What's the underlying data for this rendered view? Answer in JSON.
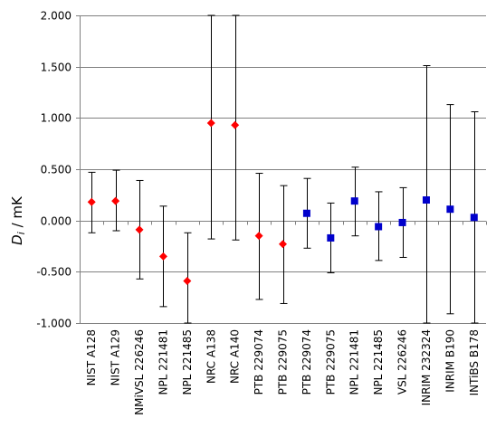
{
  "chart_data": {
    "type": "scatter",
    "title": "",
    "ylabel_main": "D",
    "ylabel_sub": "i",
    "ylabel_unit": " / mK",
    "xlabel": "",
    "ylim": [
      -1.0,
      2.0
    ],
    "yticks": [
      2.0,
      1.5,
      1.0,
      0.5,
      0.0,
      -0.5,
      -1.0
    ],
    "ytick_labels": [
      "2.000",
      "1.500",
      "1.000",
      "0.500",
      "0.000",
      "-0.500",
      "-1.000"
    ],
    "grid": true,
    "categories": [
      "NIST A128",
      "NIST A129",
      "NMiVSL 226246",
      "NPL 221481",
      "NPL 221485",
      "NRC A138",
      "NRC A140",
      "PTB 229074",
      "PTB 229075",
      "PTB 229074",
      "PTB 229075",
      "NPL 221481",
      "NPL 221485",
      "VSL 226246",
      "INRIM 232324",
      "INRIM B190",
      "INTiBS B178"
    ],
    "series": [
      {
        "marker": "diamond",
        "color": "#ff0000",
        "points": [
          {
            "cat": 0,
            "y": 0.18,
            "lo": -0.12,
            "hi": 0.47
          },
          {
            "cat": 1,
            "y": 0.19,
            "lo": -0.1,
            "hi": 0.49
          },
          {
            "cat": 2,
            "y": -0.09,
            "lo": -0.57,
            "hi": 0.39
          },
          {
            "cat": 3,
            "y": -0.35,
            "lo": -0.84,
            "hi": 0.14
          },
          {
            "cat": 4,
            "y": -0.59,
            "lo": -1.0,
            "hi": -0.12
          },
          {
            "cat": 5,
            "y": 0.95,
            "lo": -0.18,
            "hi": 2.0
          },
          {
            "cat": 6,
            "y": 0.93,
            "lo": -0.19,
            "hi": 2.0
          },
          {
            "cat": 7,
            "y": -0.15,
            "lo": -0.77,
            "hi": 0.46
          },
          {
            "cat": 8,
            "y": -0.23,
            "lo": -0.81,
            "hi": 0.34
          }
        ]
      },
      {
        "marker": "square",
        "color": "#0000cc",
        "points": [
          {
            "cat": 9,
            "y": 0.07,
            "lo": -0.27,
            "hi": 0.41
          },
          {
            "cat": 10,
            "y": -0.17,
            "lo": -0.51,
            "hi": 0.17
          },
          {
            "cat": 11,
            "y": 0.19,
            "lo": -0.15,
            "hi": 0.52
          },
          {
            "cat": 12,
            "y": -0.06,
            "lo": -0.39,
            "hi": 0.28
          },
          {
            "cat": 13,
            "y": -0.02,
            "lo": -0.36,
            "hi": 0.32
          },
          {
            "cat": 14,
            "y": 0.2,
            "lo": -1.0,
            "hi": 1.51
          },
          {
            "cat": 15,
            "y": 0.11,
            "lo": -0.91,
            "hi": 1.13
          },
          {
            "cat": 16,
            "y": 0.03,
            "lo": -1.0,
            "hi": 1.06
          }
        ]
      }
    ]
  }
}
